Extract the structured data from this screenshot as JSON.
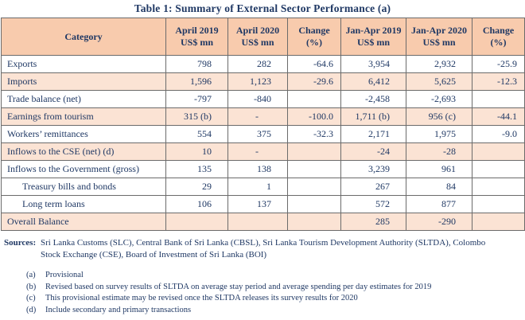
{
  "title": "Table 1: Summary of External Sector Performance (a)",
  "colors": {
    "header_bg": "#F8CBAD",
    "shaded_row_bg": "#FBE3D4",
    "text": "#1F3864",
    "border": "#6b6b6b"
  },
  "table": {
    "headers": [
      {
        "line1": "Category",
        "line2": ""
      },
      {
        "line1": "April 2019",
        "line2": "US$ mn"
      },
      {
        "line1": "April 2020",
        "line2": "US$ mn"
      },
      {
        "line1": "Change",
        "line2": "(%)"
      },
      {
        "line1": "Jan-Apr 2019",
        "line2": "US$ mn"
      },
      {
        "line1": "Jan-Apr 2020",
        "line2": "US$ mn"
      },
      {
        "line1": "Change",
        "line2": "(%)"
      }
    ],
    "rows": [
      {
        "category": "Exports",
        "values": [
          "798",
          "282",
          "-64.6",
          "3,954",
          "2,932",
          "-25.9"
        ],
        "shaded": false,
        "indent": false
      },
      {
        "category": "Imports",
        "values": [
          "1,596",
          "1,123",
          "-29.6",
          "6,412",
          "5,625",
          "-12.3"
        ],
        "shaded": true,
        "indent": false
      },
      {
        "category": "Trade balance (net)",
        "values": [
          "-797",
          "-840",
          "",
          "-2,458",
          "-2,693",
          ""
        ],
        "shaded": false,
        "indent": false
      },
      {
        "category": "Earnings from tourism",
        "values": [
          "315 (b)",
          "-",
          "-100.0",
          "1,711 (b)",
          "956 (c)",
          "-44.1"
        ],
        "shaded": true,
        "indent": false
      },
      {
        "category": "Workers’ remittances",
        "values": [
          "554",
          "375",
          "-32.3",
          "2,171",
          "1,975",
          "-9.0"
        ],
        "shaded": false,
        "indent": false
      },
      {
        "category": "Inflows to the CSE (net) (d)",
        "values": [
          "10",
          "-",
          "",
          "-24",
          "-28",
          ""
        ],
        "shaded": true,
        "indent": false
      },
      {
        "category": "Inflows to the Government (gross)",
        "values": [
          "135",
          "138",
          "",
          "3,239",
          "961",
          ""
        ],
        "shaded": false,
        "indent": false
      },
      {
        "category": "Treasury bills and bonds",
        "values": [
          "29",
          "1",
          "",
          "267",
          "84",
          ""
        ],
        "shaded": false,
        "indent": true
      },
      {
        "category": "Long term loans",
        "values": [
          "106",
          "137",
          "",
          "572",
          "877",
          ""
        ],
        "shaded": false,
        "indent": true
      },
      {
        "category": "Overall Balance",
        "values": [
          "",
          "",
          "",
          "285",
          "-290",
          ""
        ],
        "shaded": true,
        "indent": false
      }
    ]
  },
  "sources": {
    "label": "Sources:",
    "text": "Sri Lanka Customs (SLC), Central Bank of Sri Lanka (CBSL), Sri Lanka Tourism Development Authority (SLTDA), Colombo Stock Exchange (CSE), Board of Investment of Sri Lanka (BOI)"
  },
  "footnotes": [
    {
      "label": "(a)",
      "text": "Provisional"
    },
    {
      "label": "(b)",
      "text": "Revised based on survey results of SLTDA on average stay period and average spending per day estimates for 2019"
    },
    {
      "label": "(c)",
      "text": "This provisional estimate may be revised once the SLTDA releases its survey results for 2020"
    },
    {
      "label": "(d)",
      "text": "Include secondary and primary transactions"
    }
  ]
}
